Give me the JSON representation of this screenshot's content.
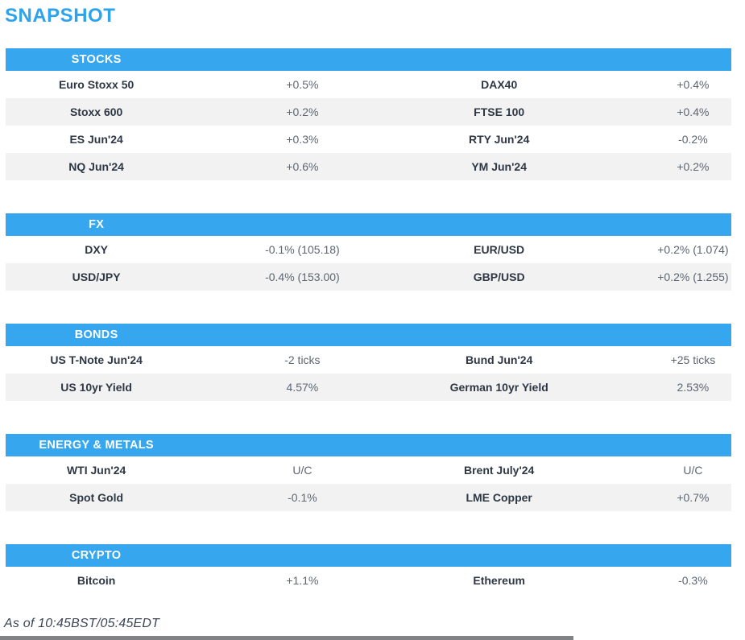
{
  "page_title": "SNAPSHOT",
  "colors": {
    "accent_blue": "#36a7ef",
    "title_blue": "#2ea3eb",
    "row_alt_bg": "#f2f2f2",
    "label_text": "#2e3744",
    "value_text": "#5d6672"
  },
  "sections": [
    {
      "title": "STOCKS",
      "rows": [
        {
          "cells": [
            "Euro Stoxx 50",
            "+0.5%",
            "DAX40",
            "+0.4%"
          ]
        },
        {
          "cells": [
            "Stoxx 600",
            "+0.2%",
            "FTSE 100",
            "+0.4%"
          ]
        },
        {
          "cells": [
            "ES Jun'24",
            "+0.3%",
            "RTY Jun'24",
            "-0.2%"
          ]
        },
        {
          "cells": [
            "NQ Jun'24",
            "+0.6%",
            "YM Jun'24",
            "+0.2%"
          ]
        }
      ]
    },
    {
      "title": "FX",
      "rows": [
        {
          "cells": [
            "DXY",
            "-0.1% (105.18)",
            "EUR/USD",
            "+0.2% (1.074)"
          ]
        },
        {
          "cells": [
            "USD/JPY",
            "-0.4% (153.00)",
            "GBP/USD",
            "+0.2% (1.255)"
          ]
        }
      ]
    },
    {
      "title": "BONDS",
      "rows": [
        {
          "cells": [
            "US T-Note Jun'24",
            "-2 ticks",
            "Bund Jun'24",
            "+25 ticks"
          ]
        },
        {
          "cells": [
            "US 10yr Yield",
            "4.57%",
            "German 10yr Yield",
            "2.53%"
          ]
        }
      ]
    },
    {
      "title": "ENERGY & METALS",
      "rows": [
        {
          "cells": [
            "WTI Jun'24",
            "U/C",
            "Brent July'24",
            "U/C"
          ]
        },
        {
          "cells": [
            "Spot Gold",
            "-0.1%",
            "LME Copper",
            "+0.7%"
          ]
        }
      ]
    },
    {
      "title": "CRYPTO",
      "rows": [
        {
          "cells": [
            "Bitcoin",
            "+1.1%",
            "Ethereum",
            "-0.3%"
          ]
        }
      ]
    }
  ],
  "footer": {
    "as_of": "As of 10:45BST/05:45EDT"
  }
}
